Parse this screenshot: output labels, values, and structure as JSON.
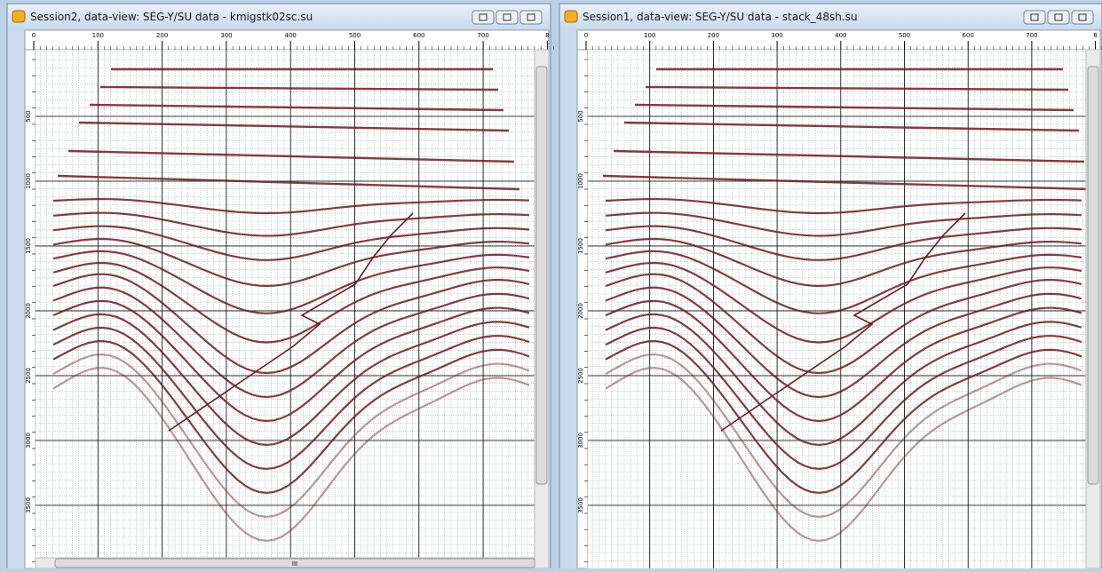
{
  "windows": [
    {
      "title": "Session2, data-view: SEG-Y/SU data - kmigstk02sc.su",
      "x_ticks": [
        "0",
        "100",
        "200",
        "300",
        "400",
        "500",
        "600",
        "700",
        "8"
      ],
      "y_ticks": [
        "500",
        "1000",
        "1500",
        "2000",
        "2500",
        "3000",
        "3500"
      ],
      "scroll_grip": "III"
    },
    {
      "title": "Session1, data-view: SEG-Y/SU data - stack_48sh.su",
      "x_ticks": [
        "0",
        "100",
        "200",
        "300",
        "400",
        "500",
        "600",
        "700",
        "8"
      ],
      "y_ticks": [
        "500",
        "1000",
        "1500",
        "2000",
        "2500",
        "3000",
        "3500"
      ]
    }
  ]
}
